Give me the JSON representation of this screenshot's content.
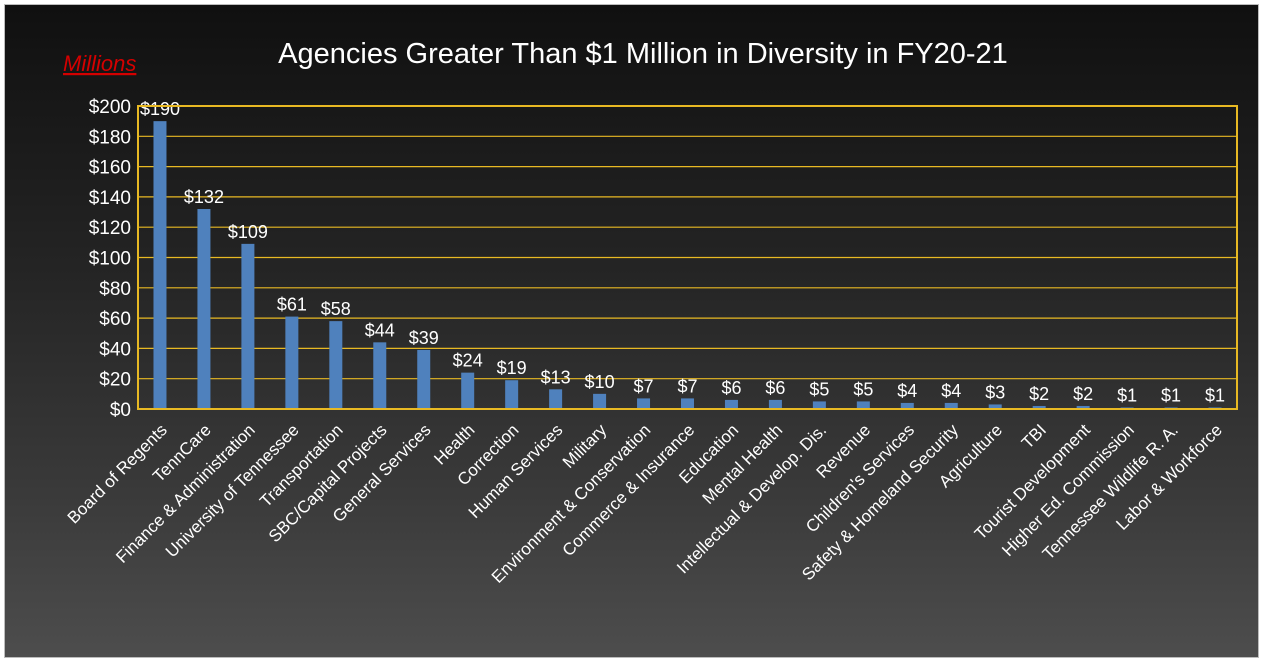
{
  "chart_data": {
    "type": "bar",
    "title": "Agencies Greater Than $1 Million in Diversity in FY20-21",
    "unit_label": "Millions",
    "xlabel": "",
    "ylabel": "",
    "ylim": [
      0,
      200
    ],
    "y_ticks": [
      {
        "value": 0,
        "label": "$0"
      },
      {
        "value": 20,
        "label": "$20"
      },
      {
        "value": 40,
        "label": "$40"
      },
      {
        "value": 60,
        "label": "$60"
      },
      {
        "value": 80,
        "label": "$80"
      },
      {
        "value": 100,
        "label": "$100"
      },
      {
        "value": 120,
        "label": "$120"
      },
      {
        "value": 140,
        "label": "$140"
      },
      {
        "value": 160,
        "label": "$160"
      },
      {
        "value": 180,
        "label": "$180"
      },
      {
        "value": 200,
        "label": "$200"
      }
    ],
    "grid": true,
    "legend": "none",
    "colors": {
      "bar": "#4f81bd",
      "grid": "#e8b923",
      "text": "#ffffff",
      "unit_label": "#d40000"
    },
    "categories": [
      "Board of Regents",
      "TennCare",
      "Finance & Administration",
      "University of Tennessee",
      "Transportation",
      "SBC/Capital Projects",
      "General Services",
      "Health",
      "Correction",
      "Human Services",
      "Military",
      "Environment  & Conservation",
      "Commerce & Insurance",
      "Education",
      "Mental Health",
      "Intellectual & Develop. Dis.",
      "Revenue",
      "Children's Services",
      "Safety & Homeland Security",
      "Agriculture",
      "TBI",
      "Tourist Development",
      "Higher Ed. Commission",
      "Tennessee Wildlife R. A.",
      "Labor & Workforce"
    ],
    "values": [
      190,
      132,
      109,
      61,
      58,
      44,
      39,
      24,
      19,
      13,
      10,
      7,
      7,
      6,
      6,
      5,
      5,
      4,
      4,
      3,
      2,
      2,
      1,
      1,
      1
    ],
    "data_labels": [
      "$190",
      "$132",
      "$109",
      "$61",
      "$58",
      "$44",
      "$39",
      "$24",
      "$19",
      "$13",
      "$10",
      "$7",
      "$7",
      "$6",
      "$6",
      "$5",
      "$5",
      "$4",
      "$4",
      "$3",
      "$2",
      "$2",
      "$1",
      "$1",
      "$1"
    ]
  }
}
